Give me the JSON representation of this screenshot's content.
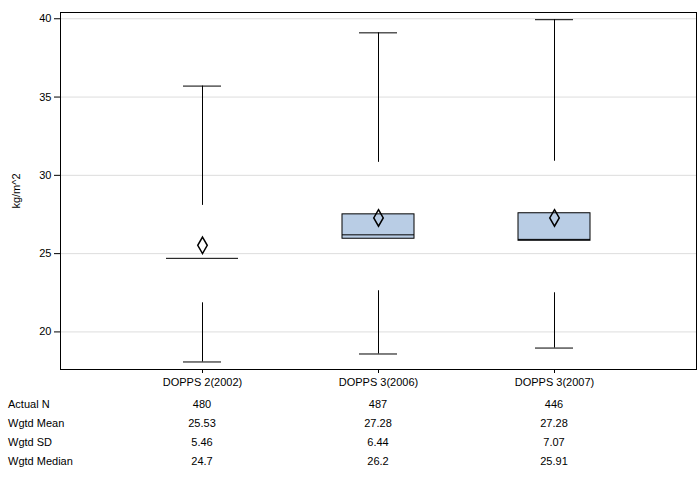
{
  "chart_data": {
    "type": "box",
    "y_label": "kg/m^2",
    "categories": [
      "DOPPS 2(2002)",
      "DOPPS 3(2006)",
      "DOPPS 3(2007)"
    ],
    "boxes": [
      {
        "low": 18.08,
        "q1": 21.86,
        "median": 24.7,
        "q3": 28.08,
        "high": 35.7,
        "mean": 25.53
      },
      {
        "low": 18.59,
        "q1": 22.63,
        "median": 26.2,
        "q3": 30.83,
        "high": 39.1,
        "mean": 27.28
      },
      {
        "low": 18.97,
        "q1": 22.5,
        "median": 25.91,
        "q3": 30.9,
        "high": 39.94,
        "mean": 27.28
      }
    ],
    "color": "#b9cde5",
    "ylim": [
      17.6,
      40.4
    ],
    "yticks": [
      20,
      25,
      30,
      35,
      40
    ],
    "grid": true,
    "table": {
      "rows": [
        {
          "label": "Actual N",
          "values": [
            480,
            487,
            446
          ]
        },
        {
          "label": "Wgtd Mean",
          "values": [
            25.53,
            27.28,
            27.28
          ]
        },
        {
          "label": "Wgtd SD",
          "values": [
            5.46,
            6.44,
            7.07
          ]
        },
        {
          "label": "Wgtd Median",
          "values": [
            24.7,
            26.2,
            25.91
          ]
        }
      ]
    }
  }
}
